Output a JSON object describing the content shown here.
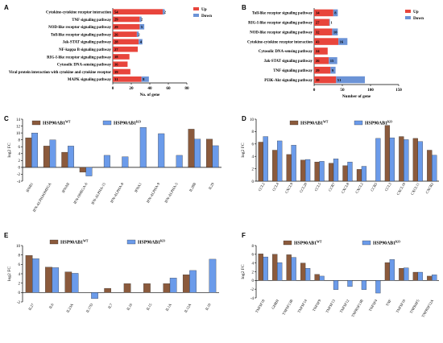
{
  "colors": {
    "up": "#e8453c",
    "down": "#6b93d6",
    "wt": "#8b5a3c",
    "ko": "#6b9bea"
  },
  "chart_data": [
    {
      "panel": "A",
      "type": "bar",
      "orientation": "horizontal",
      "stacked": true,
      "categories": [
        "Cytokine-cytokine receptor interaction",
        "TNF signaling pathway",
        "NOD-like receptor signaling pathway",
        "Toll-like receptor signaling pathway",
        "Jak-STAT signaling pathway",
        "NF-kappa B signaling pathway",
        "RIG-I-like receptor signaling pathway",
        "Cytosolic DNA-sensing pathway",
        "Viral protein interaction with cytokine and cytokine receptor",
        "MAPK signaling pathway"
      ],
      "series": [
        {
          "name": "Up",
          "values": [
            54,
            29,
            29,
            26,
            28,
            27,
            18,
            16,
            19,
            31
          ]
        },
        {
          "name": "Down",
          "values": [
            2,
            2,
            5,
            2,
            4,
            0,
            0,
            0,
            0,
            8
          ]
        }
      ],
      "xlabel": "No. of gene",
      "xlim": [
        0,
        80
      ],
      "xticks": [
        0,
        20,
        40,
        60,
        80
      ],
      "legend_position": "top-right"
    },
    {
      "panel": "B",
      "type": "bar",
      "orientation": "horizontal",
      "stacked": true,
      "categories": [
        "Toll-like receptor signaling pathway",
        "RIG-I-like receptor signaling pathway",
        "NOD-like receptor signaling pathway",
        "Cytokine-cytokine receptor interaction",
        "Cytosolic DNA-sensing pathway",
        "Jak-STAT signaling pathway",
        "TNF signaling pathway",
        "PI3K-Akt signaling pathway"
      ],
      "series": [
        {
          "name": "Up",
          "values": [
            34,
            27,
            32,
            43,
            24,
            26,
            29,
            39
          ]
        },
        {
          "name": "Down",
          "values": [
            8,
            1,
            10,
            16,
            0,
            15,
            9,
            51
          ]
        }
      ],
      "xlabel": "Number of gene",
      "xlim": [
        0,
        150
      ],
      "xticks": [
        0,
        50,
        100,
        150
      ],
      "legend_position": "top-right"
    },
    {
      "panel": "C",
      "type": "bar",
      "ylabel": "log2 FC",
      "ylim": [
        -4,
        14
      ],
      "yticks": [
        -4,
        -2,
        0,
        2,
        4,
        6,
        8,
        10,
        12,
        14
      ],
      "categories": [
        "IFNB1",
        "IFN-ALPHAOMEGA",
        "IFNAII",
        "IFN-OMEGA-6",
        "IFN-ALPHA-15",
        "IFN-ALPHA-8",
        "IFNA1",
        "IFN-ALPHA-9",
        "IFN-ALPHA-5",
        "IL28B",
        "IL29"
      ],
      "series": [
        {
          "name": "HSP90AB1",
          "sup": "WT",
          "values": [
            8.6,
            6.2,
            4.4,
            -1.4,
            0,
            0,
            0,
            0,
            0,
            11.1,
            8.2
          ]
        },
        {
          "name": "HSP90AB1",
          "sup": "KO",
          "values": [
            10.0,
            8.0,
            6.2,
            -2.5,
            3.5,
            3.1,
            11.6,
            9.8,
            3.5,
            8.2,
            6.3
          ]
        }
      ]
    },
    {
      "panel": "D",
      "type": "bar",
      "ylabel": "log2 FC",
      "ylim": [
        0,
        10
      ],
      "yticks": [
        0,
        2,
        4,
        6,
        8,
        10
      ],
      "categories": [
        "CCL2",
        "CCL4",
        "CXCL9",
        "CCL20",
        "CCL5",
        "CCR7",
        "CXCL8",
        "CXCL2",
        "CCR5",
        "CCL3",
        "CXCL10",
        "CXCL11",
        "CXCR2"
      ],
      "series": [
        {
          "name": "HSP90AB1",
          "sup": "WT",
          "values": [
            6.3,
            5.0,
            4.3,
            3.4,
            3.1,
            2.9,
            2.5,
            1.9,
            0,
            9.0,
            7.2,
            6.9,
            5.0
          ]
        },
        {
          "name": "HSP90AB1",
          "sup": "KO",
          "values": [
            7.2,
            6.5,
            5.8,
            3.5,
            3.2,
            3.6,
            3.1,
            2.4,
            6.9,
            7.0,
            6.7,
            6.4,
            4.2
          ]
        }
      ]
    },
    {
      "panel": "E",
      "type": "bar",
      "ylabel": "log2 FC",
      "ylim": [
        -2,
        10
      ],
      "yticks": [
        -2,
        0,
        2,
        4,
        6,
        8,
        10
      ],
      "categories": [
        "IL27",
        "IL6",
        "IL23A",
        "IL17D",
        "IL7",
        "IL16",
        "IL15",
        "IL1A",
        "IL12A",
        "IL10"
      ],
      "series": [
        {
          "name": "HSP90AB1",
          "sup": "WT",
          "values": [
            7.9,
            5.4,
            4.4,
            0,
            0.9,
            1.9,
            1.9,
            1.9,
            3.8,
            0
          ]
        },
        {
          "name": "HSP90AB1",
          "sup": "KO",
          "values": [
            7.2,
            5.3,
            4.1,
            -1.3,
            0,
            0,
            0,
            3.1,
            4.7,
            7.1
          ]
        }
      ]
    },
    {
      "panel": "F",
      "type": "bar",
      "ylabel": "log2 FC",
      "ylim": [
        -4,
        8
      ],
      "yticks": [
        -4,
        -2,
        0,
        2,
        4,
        6,
        8
      ],
      "categories": [
        "TNFSF18",
        "GHRH",
        "TNFSF13B",
        "TNFSF14",
        "TNFSF9",
        "TNFSF13",
        "TNFSF12",
        "TNFRSF13B",
        "TNFSF4",
        "TNF",
        "TNFSF10",
        "TNFRSF5",
        "TNFRSF12A"
      ],
      "series": [
        {
          "name": "HSP90AB1",
          "sup": "WT",
          "values": [
            6.1,
            6.0,
            5.9,
            4.0,
            1.4,
            0,
            0,
            0,
            0,
            4.1,
            2.8,
            1.9,
            1.0
          ]
        },
        {
          "name": "HSP90AB1",
          "sup": "KO",
          "values": [
            5.4,
            4.1,
            5.3,
            2.8,
            1.0,
            -2.1,
            -1.4,
            -2.1,
            -2.9,
            4.8,
            2.9,
            1.9,
            1.3
          ]
        }
      ]
    }
  ]
}
